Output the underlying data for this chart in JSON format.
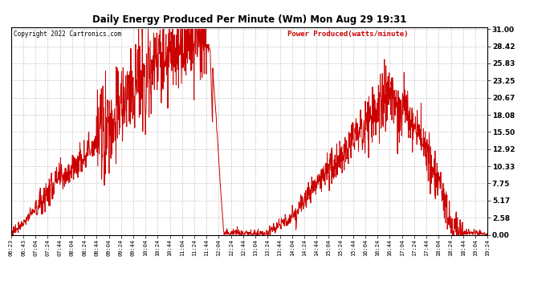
{
  "title": "Daily Energy Produced Per Minute (Wm) Mon Aug 29 19:31",
  "copyright": "Copyright 2022 Cartronics.com",
  "legend_label": "Power Produced(watts/minute)",
  "line_color": "#cc0000",
  "background_color": "#ffffff",
  "grid_color": "#bbbbbb",
  "yticks": [
    0.0,
    2.58,
    5.17,
    7.75,
    10.33,
    12.92,
    15.5,
    18.08,
    20.67,
    23.25,
    25.83,
    28.42,
    31.0
  ],
  "ymin": 0.0,
  "ymax": 31.0,
  "xtick_labels": [
    "06:23",
    "06:43",
    "07:04",
    "07:24",
    "07:44",
    "08:04",
    "08:24",
    "08:44",
    "09:04",
    "09:24",
    "09:44",
    "10:04",
    "10:24",
    "10:44",
    "11:04",
    "11:24",
    "11:44",
    "12:04",
    "12:24",
    "12:44",
    "13:04",
    "13:24",
    "13:44",
    "14:04",
    "14:24",
    "14:44",
    "15:04",
    "15:24",
    "15:44",
    "16:04",
    "16:24",
    "16:44",
    "17:04",
    "17:24",
    "17:44",
    "18:04",
    "18:24",
    "18:44",
    "19:04",
    "19:24"
  ]
}
